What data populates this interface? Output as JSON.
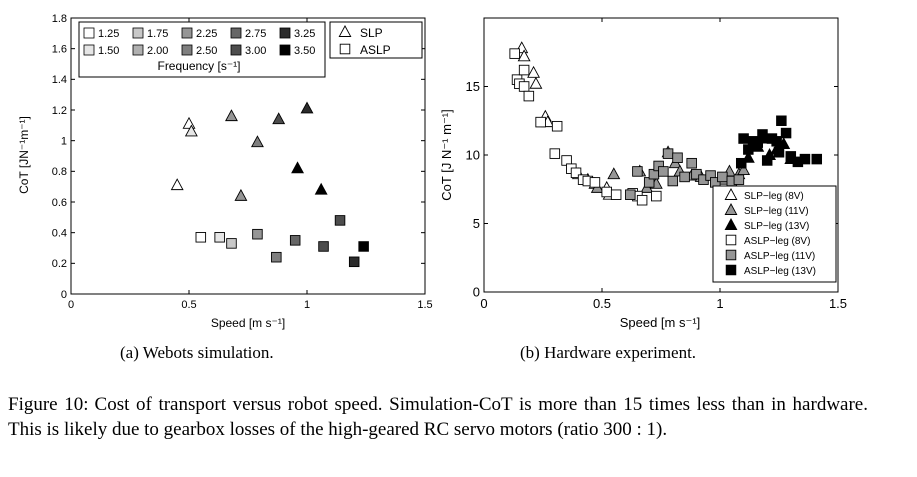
{
  "figure": {
    "caption_label": "Figure 10:",
    "caption_text": "Cost of transport versus robot speed. Simulation-CoT is more than 15 times less than in hardware. This is likely due to gearbox losses of the high-geared RC servo motors (ratio 300 : 1)."
  },
  "chart_data": [
    {
      "type": "scatter",
      "subcaption": "(a) Webots simulation.",
      "xlabel": "Speed [m s⁻¹]",
      "ylabel": "CoT [JN⁻¹m⁻¹]",
      "xlim": [
        0,
        1.5
      ],
      "ylim": [
        0,
        1.8
      ],
      "xticks": [
        "0",
        "0.5",
        "1",
        "1.5"
      ],
      "yticks": [
        "0",
        "0.2",
        "0.4",
        "0.6",
        "0.8",
        "1",
        "1.2",
        "1.4",
        "1.6",
        "1.8"
      ],
      "grid": false,
      "frequency_legend": {
        "title": "Frequency [s⁻¹]",
        "entries": [
          {
            "label": "1.25",
            "color": "#ffffff"
          },
          {
            "label": "1.50",
            "color": "#e6e6e6"
          },
          {
            "label": "1.75",
            "color": "#c8c8c8"
          },
          {
            "label": "2.00",
            "color": "#b0b0b0"
          },
          {
            "label": "2.25",
            "color": "#969696"
          },
          {
            "label": "2.50",
            "color": "#7f7f7f"
          },
          {
            "label": "2.75",
            "color": "#666666"
          },
          {
            "label": "3.00",
            "color": "#4d4d4d"
          },
          {
            "label": "3.25",
            "color": "#2b2b2b"
          },
          {
            "label": "3.50",
            "color": "#000000"
          }
        ]
      },
      "shape_legend": [
        {
          "label": "SLP",
          "marker": "triangle"
        },
        {
          "label": "ASLP",
          "marker": "square"
        }
      ],
      "series": [
        {
          "name": "SLP",
          "marker": "triangle",
          "points": [
            {
              "x": 0.45,
              "y": 0.71,
              "color": "#ffffff"
            },
            {
              "x": 0.5,
              "y": 1.11,
              "color": "#ffffff"
            },
            {
              "x": 0.51,
              "y": 1.06,
              "color": "#e6e6e6"
            },
            {
              "x": 0.68,
              "y": 1.16,
              "color": "#969696"
            },
            {
              "x": 0.72,
              "y": 0.64,
              "color": "#969696"
            },
            {
              "x": 0.79,
              "y": 0.99,
              "color": "#7f7f7f"
            },
            {
              "x": 0.88,
              "y": 1.14,
              "color": "#4d4d4d"
            },
            {
              "x": 0.96,
              "y": 0.82,
              "color": "#000000"
            },
            {
              "x": 1.0,
              "y": 1.21,
              "color": "#2b2b2b"
            },
            {
              "x": 1.06,
              "y": 0.68,
              "color": "#000000"
            }
          ]
        },
        {
          "name": "ASLP",
          "marker": "square",
          "points": [
            {
              "x": 0.55,
              "y": 0.37,
              "color": "#ffffff"
            },
            {
              "x": 0.63,
              "y": 0.37,
              "color": "#e6e6e6"
            },
            {
              "x": 0.68,
              "y": 0.33,
              "color": "#c8c8c8"
            },
            {
              "x": 0.79,
              "y": 0.39,
              "color": "#969696"
            },
            {
              "x": 0.87,
              "y": 0.24,
              "color": "#7f7f7f"
            },
            {
              "x": 0.95,
              "y": 0.35,
              "color": "#666666"
            },
            {
              "x": 1.07,
              "y": 0.31,
              "color": "#4d4d4d"
            },
            {
              "x": 1.14,
              "y": 0.48,
              "color": "#4d4d4d"
            },
            {
              "x": 1.2,
              "y": 0.21,
              "color": "#2b2b2b"
            },
            {
              "x": 1.24,
              "y": 0.31,
              "color": "#000000"
            }
          ]
        }
      ]
    },
    {
      "type": "scatter",
      "subcaption": "(b) Hardware experiment.",
      "xlabel": "Speed [m s⁻¹]",
      "ylabel": "CoT [J N⁻¹ m⁻¹]",
      "xlim": [
        0,
        1.5
      ],
      "ylim": [
        0,
        20
      ],
      "xticks": [
        "0",
        "0.5",
        "1",
        "1.5"
      ],
      "yticks": [
        "0",
        "5",
        "10",
        "15"
      ],
      "grid": false,
      "legend_position": "bottom-right",
      "series": [
        {
          "name": "SLP−leg (8V)",
          "marker": "triangle",
          "color": "#ffffff",
          "points": [
            {
              "x": 0.16,
              "y": 17.8
            },
            {
              "x": 0.17,
              "y": 17.2
            },
            {
              "x": 0.21,
              "y": 16.0
            },
            {
              "x": 0.22,
              "y": 15.2
            },
            {
              "x": 0.26,
              "y": 12.8
            },
            {
              "x": 0.27,
              "y": 12.4
            },
            {
              "x": 0.4,
              "y": 8.6
            },
            {
              "x": 0.44,
              "y": 8.2
            },
            {
              "x": 0.47,
              "y": 7.9
            },
            {
              "x": 0.52,
              "y": 7.6
            },
            {
              "x": 0.53,
              "y": 7.1
            }
          ]
        },
        {
          "name": "SLP−leg (11V)",
          "marker": "triangle",
          "color": "#969696",
          "points": [
            {
              "x": 0.48,
              "y": 7.6
            },
            {
              "x": 0.55,
              "y": 8.6
            },
            {
              "x": 0.66,
              "y": 8.8
            },
            {
              "x": 0.69,
              "y": 7.6
            },
            {
              "x": 0.73,
              "y": 7.9
            },
            {
              "x": 0.78,
              "y": 10.2
            },
            {
              "x": 0.81,
              "y": 9.4
            },
            {
              "x": 0.83,
              "y": 8.8
            },
            {
              "x": 0.88,
              "y": 8.5
            },
            {
              "x": 0.92,
              "y": 8.4
            },
            {
              "x": 1.02,
              "y": 8.2
            },
            {
              "x": 1.04,
              "y": 8.8
            },
            {
              "x": 1.08,
              "y": 8.6
            },
            {
              "x": 1.1,
              "y": 8.9
            }
          ]
        },
        {
          "name": "SLP−leg (13V)",
          "marker": "triangle",
          "color": "#000000",
          "points": [
            {
              "x": 1.12,
              "y": 9.8
            },
            {
              "x": 1.16,
              "y": 10.6
            },
            {
              "x": 1.19,
              "y": 11.2
            },
            {
              "x": 1.21,
              "y": 10.0
            },
            {
              "x": 1.24,
              "y": 10.4
            },
            {
              "x": 1.27,
              "y": 10.8
            },
            {
              "x": 1.3,
              "y": 9.7
            }
          ]
        },
        {
          "name": "ASLP−leg (8V)",
          "marker": "square",
          "color": "#ffffff",
          "points": [
            {
              "x": 0.13,
              "y": 17.4
            },
            {
              "x": 0.14,
              "y": 15.5
            },
            {
              "x": 0.15,
              "y": 15.2
            },
            {
              "x": 0.17,
              "y": 15.0
            },
            {
              "x": 0.17,
              "y": 16.2
            },
            {
              "x": 0.19,
              "y": 14.3
            },
            {
              "x": 0.24,
              "y": 12.4
            },
            {
              "x": 0.31,
              "y": 12.1
            },
            {
              "x": 0.3,
              "y": 10.1
            },
            {
              "x": 0.35,
              "y": 9.6
            },
            {
              "x": 0.37,
              "y": 9.0
            },
            {
              "x": 0.39,
              "y": 8.7
            },
            {
              "x": 0.42,
              "y": 8.2
            },
            {
              "x": 0.44,
              "y": 8.1
            },
            {
              "x": 0.47,
              "y": 8.0
            },
            {
              "x": 0.52,
              "y": 7.3
            },
            {
              "x": 0.56,
              "y": 7.1
            },
            {
              "x": 0.63,
              "y": 7.2
            },
            {
              "x": 0.65,
              "y": 7.0
            },
            {
              "x": 0.67,
              "y": 6.7
            },
            {
              "x": 0.73,
              "y": 7.0
            }
          ]
        },
        {
          "name": "ASLP−leg (11V)",
          "marker": "square",
          "color": "#969696",
          "points": [
            {
              "x": 0.62,
              "y": 7.1
            },
            {
              "x": 0.65,
              "y": 8.8
            },
            {
              "x": 0.7,
              "y": 8.0
            },
            {
              "x": 0.72,
              "y": 8.6
            },
            {
              "x": 0.74,
              "y": 9.2
            },
            {
              "x": 0.76,
              "y": 8.8
            },
            {
              "x": 0.78,
              "y": 10.1
            },
            {
              "x": 0.8,
              "y": 8.1
            },
            {
              "x": 0.82,
              "y": 9.8
            },
            {
              "x": 0.85,
              "y": 8.4
            },
            {
              "x": 0.88,
              "y": 9.4
            },
            {
              "x": 0.9,
              "y": 8.6
            },
            {
              "x": 0.93,
              "y": 8.2
            },
            {
              "x": 0.96,
              "y": 8.5
            },
            {
              "x": 0.98,
              "y": 8.0
            },
            {
              "x": 1.01,
              "y": 8.4
            },
            {
              "x": 1.05,
              "y": 8.1
            },
            {
              "x": 1.08,
              "y": 8.2
            }
          ]
        },
        {
          "name": "ASLP−leg (13V)",
          "marker": "square",
          "color": "#000000",
          "points": [
            {
              "x": 1.09,
              "y": 9.4
            },
            {
              "x": 1.1,
              "y": 11.2
            },
            {
              "x": 1.12,
              "y": 10.4
            },
            {
              "x": 1.14,
              "y": 11.0
            },
            {
              "x": 1.16,
              "y": 10.9
            },
            {
              "x": 1.18,
              "y": 11.5
            },
            {
              "x": 1.2,
              "y": 9.6
            },
            {
              "x": 1.22,
              "y": 11.2
            },
            {
              "x": 1.24,
              "y": 11.0
            },
            {
              "x": 1.25,
              "y": 10.2
            },
            {
              "x": 1.26,
              "y": 12.5
            },
            {
              "x": 1.28,
              "y": 11.6
            },
            {
              "x": 1.3,
              "y": 9.9
            },
            {
              "x": 1.33,
              "y": 9.5
            },
            {
              "x": 1.36,
              "y": 9.7
            },
            {
              "x": 1.41,
              "y": 9.7
            }
          ]
        }
      ]
    }
  ]
}
